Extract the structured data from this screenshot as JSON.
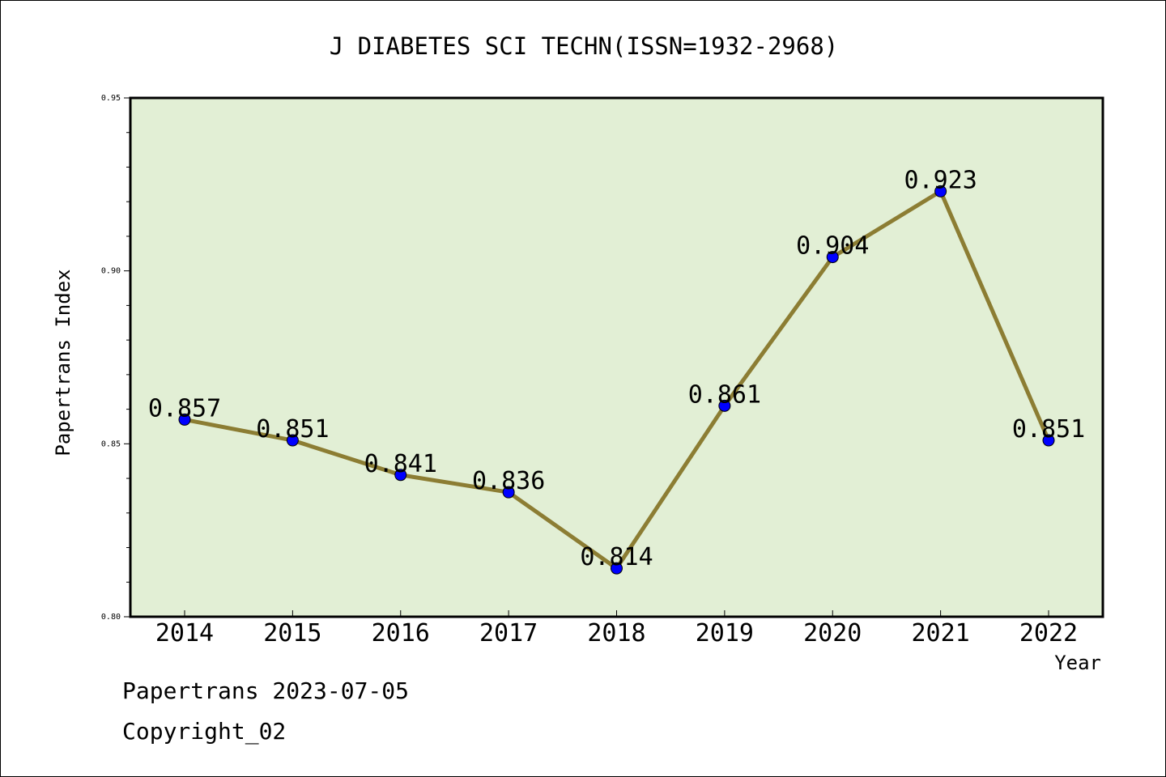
{
  "chart_data": {
    "type": "line",
    "title": "J DIABETES SCI TECHN(ISSN=1932-2968)",
    "xlabel": "Year",
    "ylabel": "Papertrans Index",
    "categories": [
      "2014",
      "2015",
      "2016",
      "2017",
      "2018",
      "2019",
      "2020",
      "2021",
      "2022"
    ],
    "values": [
      0.857,
      0.851,
      0.841,
      0.836,
      0.814,
      0.861,
      0.904,
      0.923,
      0.851
    ],
    "data_labels": [
      "0.857",
      "0.851",
      "0.841",
      "0.836",
      "0.814",
      "0.861",
      "0.904",
      "0.923",
      "0.851"
    ],
    "ylim": [
      0.8,
      0.95
    ],
    "yticks": [
      "0.80",
      "0.85",
      "0.90",
      "0.95"
    ],
    "grid": false,
    "legend": "none",
    "colors": {
      "plot_background": "#e2efd5",
      "line": "#8c7d33",
      "marker": "#0000ff",
      "axes": "#000000"
    }
  },
  "footer": {
    "date_text": "Papertrans 2023-07-05",
    "copyright_text": "Copyright_02"
  }
}
